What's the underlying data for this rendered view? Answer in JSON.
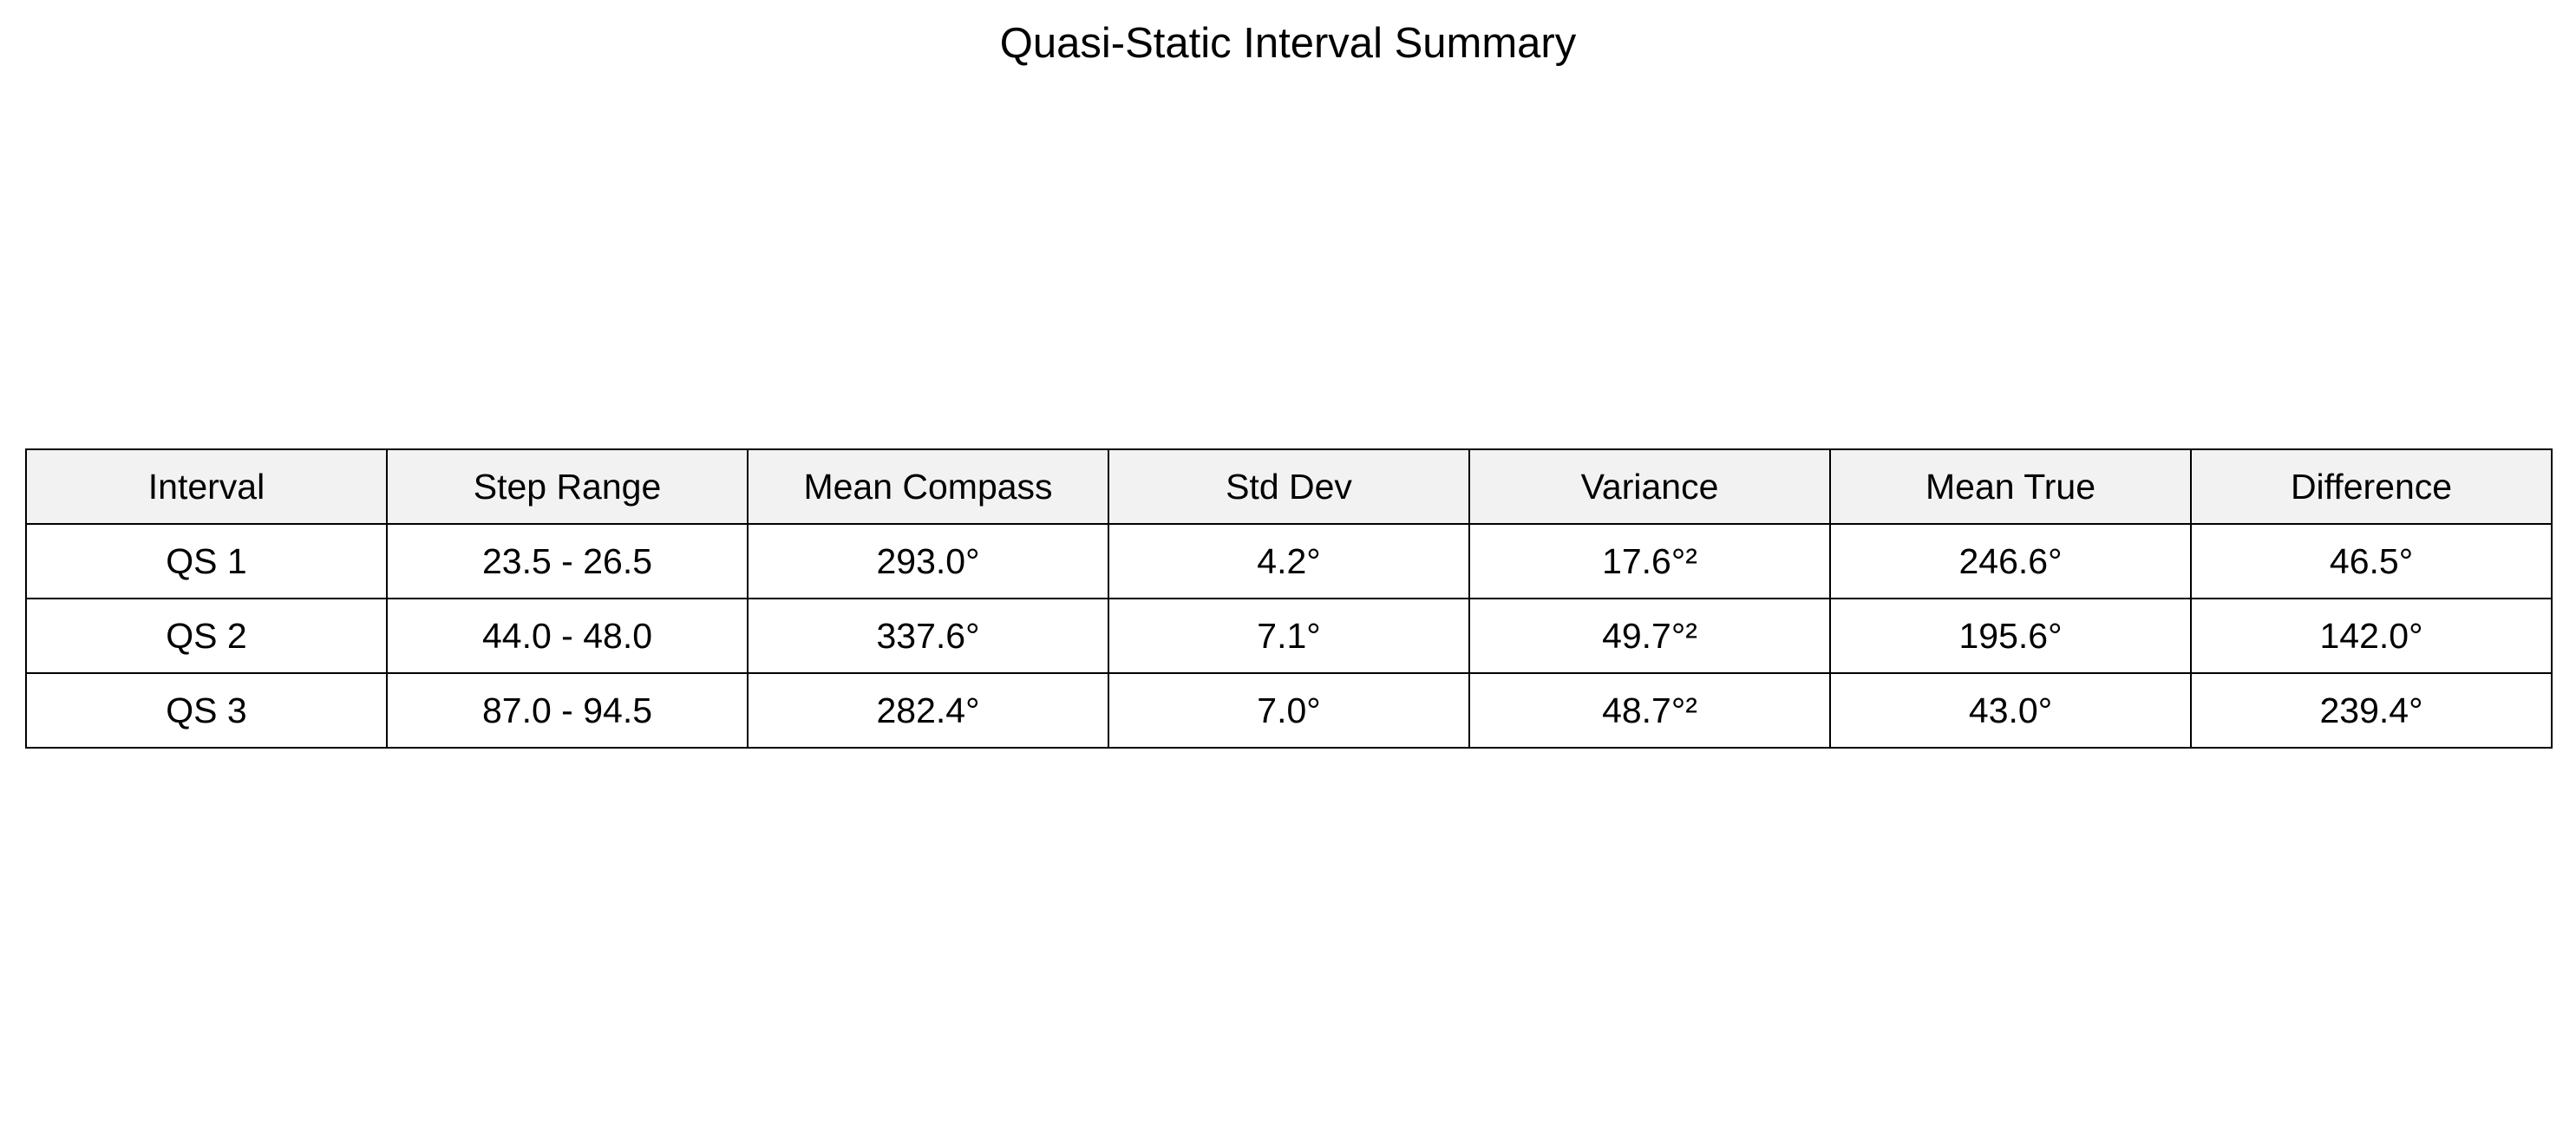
{
  "chart_data": {
    "type": "table",
    "title": "Quasi-Static Interval Summary",
    "columns": [
      "Interval",
      "Step Range",
      "Mean Compass",
      "Std Dev",
      "Variance",
      "Mean True",
      "Difference"
    ],
    "rows": [
      [
        "QS 1",
        "23.5 - 26.5",
        "293.0°",
        "4.2°",
        "17.6°²",
        "246.6°",
        "46.5°"
      ],
      [
        "QS 2",
        "44.0 - 48.0",
        "337.6°",
        "7.1°",
        "49.7°²",
        "195.6°",
        "142.0°"
      ],
      [
        "QS 3",
        "87.0 - 94.5",
        "282.4°",
        "7.0°",
        "48.7°²",
        "43.0°",
        "239.4°"
      ]
    ],
    "header_fill": "#f2f2f2",
    "border_color": "#000000"
  }
}
